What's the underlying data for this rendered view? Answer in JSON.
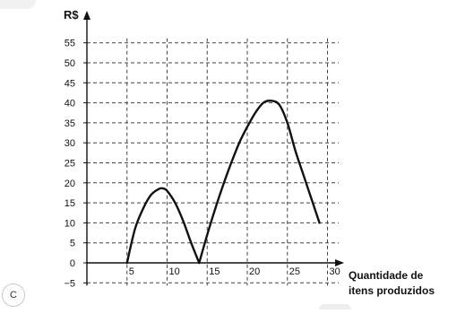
{
  "option": {
    "label": "C"
  },
  "chart_data": {
    "type": "line",
    "ylabel": "R$",
    "xlabel": "Quantidade de itens produzidos",
    "xlabel_lines": [
      "Quantidade de",
      "itens produzidos"
    ],
    "xticks": [
      5,
      10,
      15,
      20,
      25,
      30
    ],
    "yticks": [
      55,
      50,
      45,
      40,
      35,
      30,
      25,
      20,
      15,
      10,
      5,
      0,
      -5
    ],
    "ytick_labels": [
      "55",
      "50",
      "45",
      "40",
      "35",
      "30",
      "25",
      "20",
      "15",
      "10",
      "5",
      "0",
      "−5"
    ],
    "xlim": [
      0,
      31
    ],
    "ylim": [
      -6,
      58
    ],
    "grid": true,
    "series": [
      {
        "x": [
          5,
          6,
          7,
          8,
          9,
          9.5,
          10,
          11,
          12,
          13,
          14
        ],
        "y": [
          0,
          8.5,
          13.5,
          17,
          18.5,
          18.6,
          18,
          15,
          10.5,
          5,
          0
        ]
      },
      {
        "x": [
          14,
          15,
          16,
          17,
          18,
          19,
          20,
          21,
          22,
          23,
          24,
          25,
          26,
          27,
          28,
          29
        ],
        "y": [
          0,
          7,
          13.5,
          19.5,
          25,
          30,
          34,
          37.5,
          40,
          40.5,
          39.5,
          35,
          28,
          22,
          16,
          10
        ]
      }
    ]
  }
}
